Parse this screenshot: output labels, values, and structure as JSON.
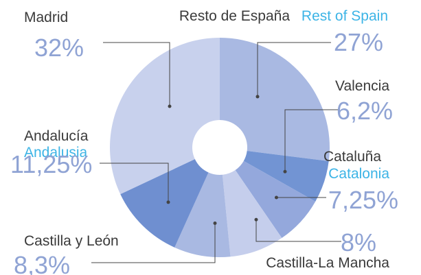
{
  "chart_data": {
    "type": "donut",
    "categories": [
      "Resto de España",
      "Valencia",
      "Cataluña",
      "Castilla-La Mancha",
      "Castilla y León",
      "Andalucía",
      "Madrid"
    ],
    "categories_en": [
      "Rest of Spain",
      null,
      "Catalonia",
      null,
      null,
      "Andalusia",
      null
    ],
    "values": [
      27,
      6.2,
      7.25,
      8,
      8.3,
      11.25,
      32
    ],
    "value_labels": [
      "27%",
      "6,2%",
      "7,25%",
      "8%",
      "8,3%",
      "11,25%",
      "32%"
    ],
    "colors": [
      "#a9b9e2",
      "#7294d3",
      "#94a8dc",
      "#c5ceec",
      "#a9b9e2",
      "#6f8fd0",
      "#c8d1ed"
    ]
  }
}
